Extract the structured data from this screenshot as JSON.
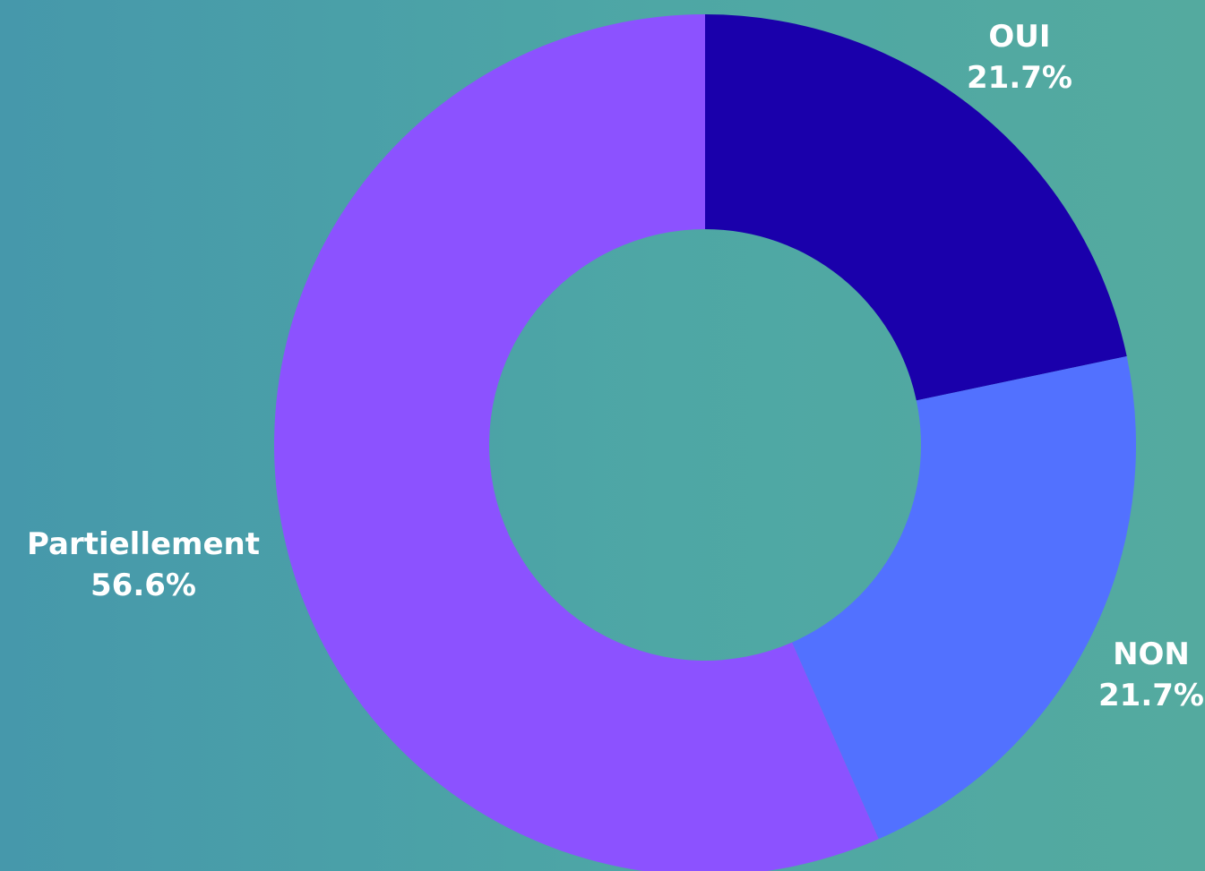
{
  "chart_data": {
    "type": "pie",
    "donut": true,
    "title": "",
    "categories": [
      "OUI",
      "NON",
      "Partiellement"
    ],
    "values": [
      21.7,
      21.7,
      56.6
    ],
    "value_labels": [
      "21.7%",
      "21.7%",
      "56.6%"
    ],
    "colors": [
      "#1a00ab",
      "#5271ff",
      "#8c52ff"
    ],
    "start_angle_deg": 0,
    "direction": "clockwise",
    "legend": "none",
    "labels_position": "outside"
  },
  "colors": {
    "background_left": "#4698ab",
    "background_right": "#54aa9f",
    "label_text": "#ffffff"
  }
}
